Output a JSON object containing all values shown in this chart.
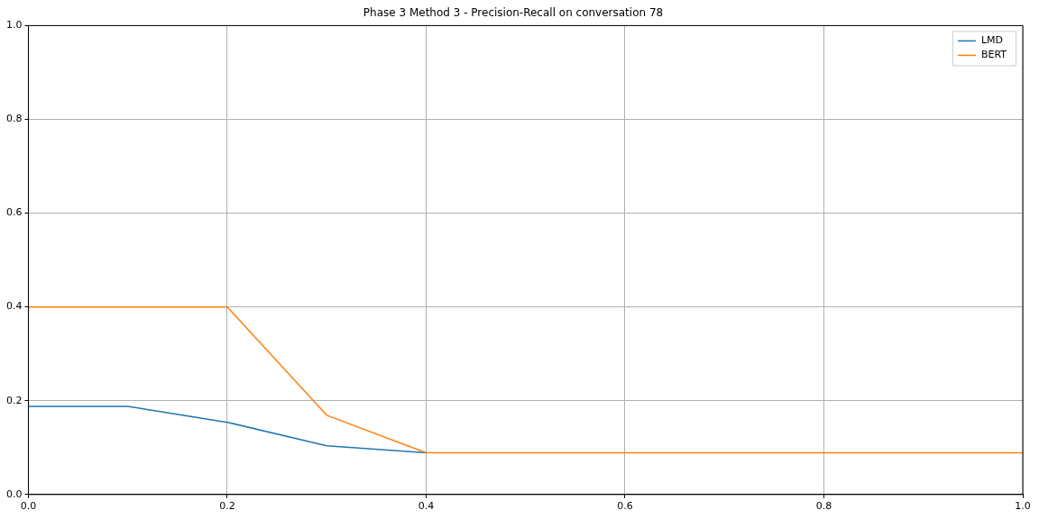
{
  "chart_data": {
    "type": "line",
    "title": "Phase 3 Method 3 - Precision-Recall on conversation 78",
    "x": [
      0,
      0.1,
      0.2,
      0.3,
      0.4,
      0.5,
      0.6,
      0.7,
      0.8,
      0.9,
      1.0
    ],
    "series": [
      {
        "name": "LMD",
        "color": "#1f77b4",
        "values": [
          0.188,
          0.188,
          0.154,
          0.104,
          0.089,
          null,
          null,
          null,
          null,
          null,
          null
        ]
      },
      {
        "name": "BERT",
        "color": "#ff7f0e",
        "values": [
          0.4,
          0.4,
          0.4,
          0.169,
          0.089,
          0.089,
          0.089,
          0.089,
          0.089,
          0.089,
          0.089
        ]
      }
    ],
    "xlim": [
      0,
      1
    ],
    "ylim": [
      0,
      1
    ],
    "xticks": [
      {
        "value": 0,
        "label": "0.0"
      },
      {
        "value": 0.2,
        "label": "0.2"
      },
      {
        "value": 0.4,
        "label": "0.4"
      },
      {
        "value": 0.6,
        "label": "0.6"
      },
      {
        "value": 0.8,
        "label": "0.8"
      },
      {
        "value": 1,
        "label": "1.0"
      }
    ],
    "yticks": [
      {
        "value": 0,
        "label": "0.0"
      },
      {
        "value": 0.2,
        "label": "0.2"
      },
      {
        "value": 0.4,
        "label": "0.4"
      },
      {
        "value": 0.6,
        "label": "0.6"
      },
      {
        "value": 0.8,
        "label": "0.8"
      },
      {
        "value": 1,
        "label": "1.0"
      }
    ],
    "grid": true,
    "legend": "top right",
    "marker": "none",
    "line_style": "solid"
  }
}
